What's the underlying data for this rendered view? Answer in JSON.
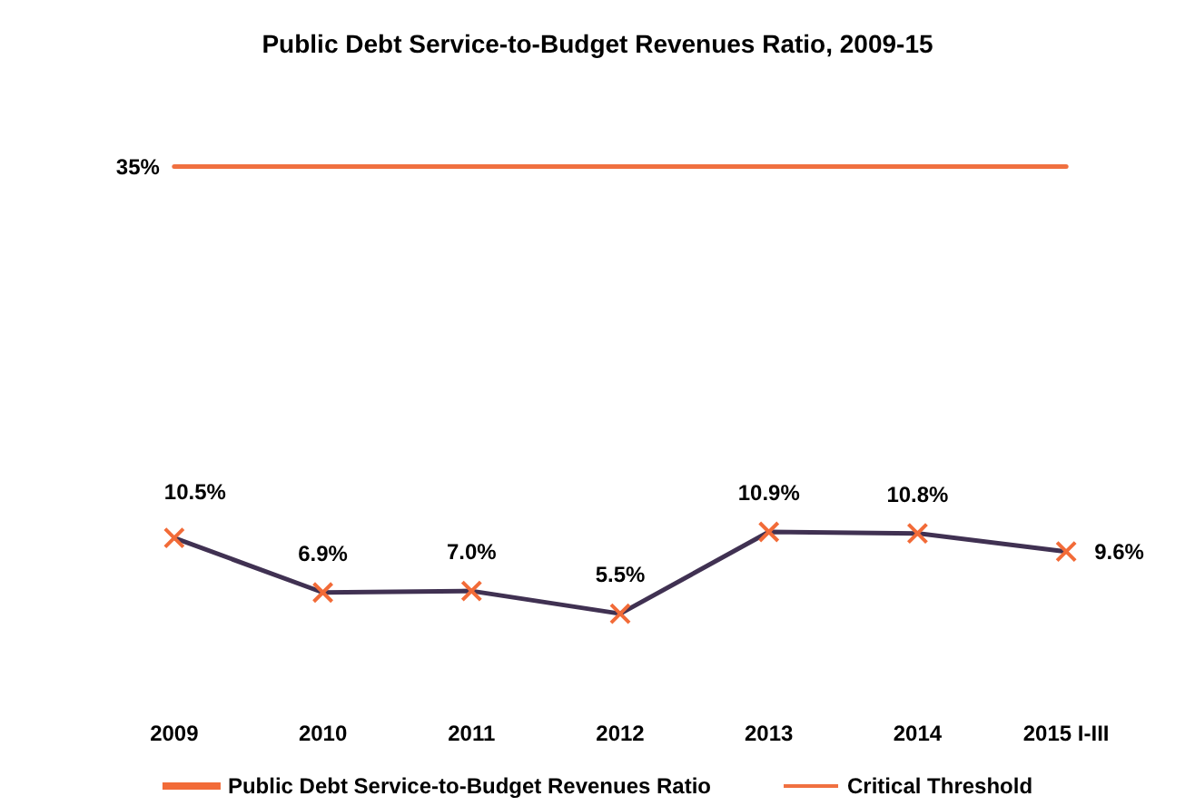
{
  "chart_data": {
    "type": "line",
    "title": "Public Debt Service-to-Budget Revenues Ratio, 2009-15",
    "categories": [
      "2009",
      "2010",
      "2011",
      "2012",
      "2013",
      "2014",
      "2015 I-III"
    ],
    "series": [
      {
        "name": "Public Debt Service-to-Budget Revenues Ratio",
        "color": "#403152",
        "values": [
          10.5,
          6.9,
          7.0,
          5.5,
          10.9,
          10.8,
          9.6
        ],
        "value_labels": [
          "10.5%",
          "6.9%",
          "7.0%",
          "5.5%",
          "10.9%",
          "10.8%",
          "9.6%"
        ],
        "marker": "cross"
      },
      {
        "name": "Critical Threshold",
        "color": "#f07040",
        "values": [
          35,
          35,
          35,
          35,
          35,
          35,
          35
        ],
        "value_labels": [
          "35%",
          null,
          null,
          null,
          null,
          null,
          null
        ],
        "marker": "none"
      }
    ],
    "tick_labels": "x",
    "grid": false,
    "legend": "bottom"
  }
}
